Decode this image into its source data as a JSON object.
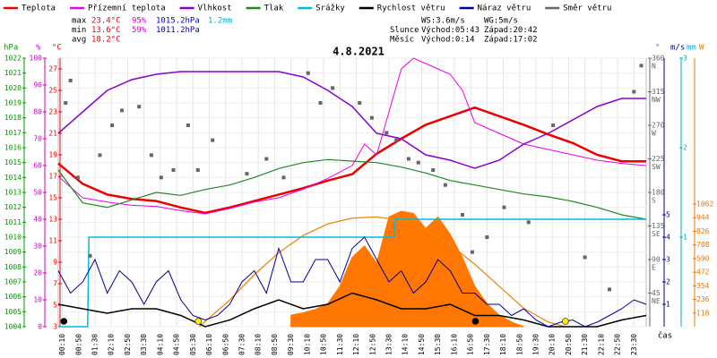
{
  "chart_data": {
    "type": "line",
    "title": "4.8.2021",
    "xlim": [
      0,
      24
    ],
    "xticks": [
      {
        "value": 0.1667,
        "label": "00:10"
      },
      {
        "value": 0.8333,
        "label": "00:50"
      },
      {
        "value": 1.5,
        "label": "01:30"
      },
      {
        "value": 2.1667,
        "label": "02:10"
      },
      {
        "value": 2.8333,
        "label": "02:50"
      },
      {
        "value": 3.5,
        "label": "03:30"
      },
      {
        "value": 4.1667,
        "label": "04:10"
      },
      {
        "value": 4.8333,
        "label": "04:50"
      },
      {
        "value": 5.5,
        "label": "05:30"
      },
      {
        "value": 6.1667,
        "label": "06:10"
      },
      {
        "value": 6.8333,
        "label": "06:50"
      },
      {
        "value": 7.5,
        "label": "07:30"
      },
      {
        "value": 8.1667,
        "label": "08:10"
      },
      {
        "value": 8.8333,
        "label": "08:50"
      },
      {
        "value": 9.5,
        "label": "09:30"
      },
      {
        "value": 10.1667,
        "label": "10:10"
      },
      {
        "value": 10.8333,
        "label": "10:50"
      },
      {
        "value": 11.5,
        "label": "11:30"
      },
      {
        "value": 12.1667,
        "label": "12:10"
      },
      {
        "value": 12.8333,
        "label": "12:50"
      },
      {
        "value": 13.5,
        "label": "13:30"
      },
      {
        "value": 14.1667,
        "label": "14:10"
      },
      {
        "value": 14.8333,
        "label": "14:50"
      },
      {
        "value": 15.5,
        "label": "15:30"
      },
      {
        "value": 16.1667,
        "label": "16:10"
      },
      {
        "value": 16.8333,
        "label": "16:50"
      },
      {
        "value": 17.5,
        "label": "17:30"
      },
      {
        "value": 18.1667,
        "label": "18:10"
      },
      {
        "value": 18.8333,
        "label": "18:50"
      },
      {
        "value": 19.5,
        "label": "19:30"
      },
      {
        "value": 20.1667,
        "label": "20:10"
      },
      {
        "value": 20.8333,
        "label": "20:50"
      },
      {
        "value": 21.5,
        "label": "21:30"
      },
      {
        "value": 22.1667,
        "label": "22:10"
      },
      {
        "value": 22.8333,
        "label": "22:50"
      },
      {
        "value": 23.5,
        "label": "23:30"
      }
    ],
    "xlabel": "čas",
    "axes": {
      "hpa": {
        "label": "hPa",
        "color": "#009900",
        "lim": [
          1004,
          1022
        ],
        "ticks": [
          1004,
          1005,
          1006,
          1007,
          1008,
          1009,
          1010,
          1011,
          1012,
          1013,
          1014,
          1015,
          1016,
          1017,
          1018,
          1019,
          1020,
          1021,
          1022
        ]
      },
      "pct": {
        "label": "%",
        "color": "#cc00cc",
        "lim": [
          0,
          100
        ],
        "ticks": [
          0,
          10,
          20,
          30,
          40,
          50,
          60,
          70,
          80,
          90,
          100
        ]
      },
      "temp": {
        "label": "°C",
        "color": "#ee0000",
        "lim": [
          3,
          28
        ],
        "ticks": [
          3,
          5,
          7,
          9,
          11,
          13,
          15,
          17,
          19,
          21,
          23,
          25,
          27
        ]
      },
      "dir": {
        "label": "°",
        "color": "#666666",
        "lim": [
          0,
          360
        ],
        "ticks": [
          45,
          90,
          135,
          180,
          225,
          270,
          315,
          360
        ],
        "names": [
          "NE",
          "E",
          "SE",
          "S",
          "SW",
          "W",
          "NW",
          "N"
        ]
      },
      "ms": {
        "label": "m/s",
        "color": "#000080",
        "lim": [
          0,
          12
        ],
        "ticks": [
          1,
          2,
          3,
          4,
          5
        ]
      },
      "mm": {
        "label": "mm",
        "color": "#00aacc",
        "lim": [
          0,
          3
        ],
        "ticks": [
          1,
          2,
          3
        ]
      },
      "w": {
        "label": "W",
        "color": "#ee7700",
        "lim": [
          0,
          2325
        ],
        "ticks": [
          118,
          236,
          354,
          472,
          590,
          708,
          826,
          944,
          1062
        ]
      }
    },
    "solar": {
      "color": "#ff7700",
      "axis": "w",
      "x": [
        9.5,
        10,
        10.5,
        11,
        11.5,
        12,
        12.5,
        13,
        13.5,
        14,
        14.5,
        15,
        15.5,
        16,
        16.5,
        17,
        17.5,
        18,
        18.5,
        19
      ],
      "values": [
        100,
        120,
        150,
        200,
        350,
        600,
        700,
        550,
        950,
        1000,
        980,
        850,
        950,
        800,
        600,
        350,
        200,
        100,
        40,
        0
      ]
    },
    "solar_theory": {
      "color": "#ee8811",
      "axis": "w",
      "x": [
        5.75,
        7,
        8,
        9,
        10,
        11,
        12,
        13,
        14,
        15,
        16,
        17,
        18,
        19,
        20,
        20.7
      ],
      "values": [
        0,
        230,
        450,
        640,
        790,
        890,
        940,
        950,
        920,
        840,
        710,
        540,
        350,
        160,
        40,
        0
      ]
    },
    "series": [
      {
        "name": "Teplota",
        "color": "#ee0000",
        "axis": "temp",
        "width": 2.5,
        "x": [
          0,
          1,
          2,
          3,
          4,
          5,
          6,
          7,
          8,
          9,
          10,
          11,
          12,
          13,
          14,
          15,
          16,
          17,
          18,
          19,
          20,
          21,
          22,
          23,
          24
        ],
        "values": [
          18.2,
          16.3,
          15.3,
          14.9,
          14.7,
          14.1,
          13.6,
          14.1,
          14.7,
          15.3,
          15.9,
          16.6,
          17.2,
          19.1,
          20.5,
          21.8,
          22.6,
          23.4,
          22.6,
          21.8,
          20.9,
          20.1,
          19.0,
          18.4,
          18.4
        ]
      },
      {
        "name": "Přízemní teplota",
        "color": "#ee00ee",
        "axis": "temp",
        "width": 1,
        "x": [
          0,
          1,
          2,
          3,
          4,
          5,
          6,
          7,
          8,
          9,
          10,
          11,
          12,
          12.5,
          13,
          13.5,
          14,
          14.5,
          15,
          15.5,
          16,
          16.5,
          17,
          18,
          19,
          20,
          21,
          22,
          23,
          24
        ],
        "values": [
          17.0,
          15.0,
          14.6,
          14.3,
          14.2,
          13.8,
          13.5,
          14.0,
          14.6,
          15.0,
          15.8,
          16.8,
          18.0,
          20.0,
          19.0,
          23.0,
          27.0,
          28.0,
          27.5,
          27.0,
          26.5,
          25.0,
          22.0,
          21.0,
          20.0,
          19.5,
          19.0,
          18.5,
          18.2,
          18.0
        ]
      },
      {
        "name": "Vlhkost",
        "color": "#8800cc",
        "axis": "pct",
        "width": 1.5,
        "x": [
          0,
          1,
          2,
          3,
          4,
          5,
          6,
          7,
          8,
          9,
          10,
          11,
          12,
          13,
          14,
          15,
          16,
          17,
          18,
          19,
          20,
          21,
          22,
          23,
          24
        ],
        "values": [
          72,
          80,
          88,
          92,
          94,
          95,
          95,
          95,
          95,
          95,
          93,
          88,
          82,
          72,
          70,
          64,
          62,
          59,
          62,
          68,
          72,
          77,
          82,
          85,
          85
        ]
      },
      {
        "name": "Tlak",
        "color": "#228822",
        "axis": "hpa",
        "width": 1.2,
        "x": [
          0,
          1,
          2,
          3,
          4,
          5,
          6,
          7,
          8,
          9,
          10,
          11,
          12,
          13,
          14,
          15,
          16,
          17,
          18,
          19,
          20,
          21,
          22,
          23,
          24
        ],
        "values": [
          1014.5,
          1012.3,
          1012.0,
          1012.5,
          1013.0,
          1012.8,
          1013.2,
          1013.5,
          1014.0,
          1014.6,
          1015.0,
          1015.2,
          1015.1,
          1015.0,
          1014.7,
          1014.3,
          1013.8,
          1013.5,
          1013.2,
          1012.9,
          1012.7,
          1012.4,
          1012.0,
          1011.5,
          1011.2
        ]
      },
      {
        "name": "Srážky",
        "color": "#00bbdd",
        "axis": "mm",
        "width": 1.5,
        "x": [
          0,
          1.2,
          1.25,
          13.7,
          13.75,
          24
        ],
        "values": [
          0,
          0,
          1.0,
          1.0,
          1.2,
          1.2
        ]
      },
      {
        "name": "Rychlost větru",
        "color": "#000000",
        "axis": "ms",
        "width": 1.5,
        "x": [
          0,
          1,
          2,
          3,
          4,
          5,
          6,
          7,
          8,
          9,
          10,
          11,
          12,
          13,
          14,
          15,
          16,
          17,
          18,
          19,
          20,
          21,
          22,
          23,
          24
        ],
        "values": [
          1.0,
          0.8,
          0.6,
          0.8,
          0.8,
          0.5,
          0,
          0.3,
          0.8,
          1.2,
          0.8,
          1.0,
          1.5,
          1.2,
          0.8,
          0.8,
          1.0,
          0.5,
          0.5,
          0.3,
          0,
          0,
          0,
          0.3,
          0.5
        ]
      },
      {
        "name": "Náraz větru",
        "color": "#000099",
        "axis": "ms",
        "width": 1,
        "x": [
          0,
          0.5,
          1,
          1.5,
          2,
          2.5,
          3,
          3.5,
          4,
          4.5,
          5,
          5.5,
          6,
          6.5,
          7,
          7.5,
          8,
          8.5,
          9,
          9.5,
          10,
          10.5,
          11,
          11.5,
          12,
          12.5,
          13,
          13.5,
          14,
          14.5,
          15,
          15.5,
          16,
          16.5,
          17,
          17.5,
          18,
          18.5,
          19,
          19.5,
          20,
          20.5,
          21,
          21.5,
          22,
          22.5,
          23,
          23.5,
          24
        ],
        "values": [
          2.5,
          1.5,
          2,
          3,
          1.5,
          2.5,
          2,
          1,
          2,
          2.5,
          1.2,
          0.5,
          0.3,
          0.5,
          1,
          2,
          2.5,
          1.5,
          3.5,
          2,
          2,
          3,
          3,
          2,
          3.5,
          4,
          3,
          2,
          2.5,
          1.5,
          2,
          3,
          2.5,
          1.5,
          1.5,
          1,
          1,
          0.5,
          0.8,
          0.3,
          0,
          0.2,
          0.3,
          0,
          0.2,
          0.5,
          0.8,
          1.2,
          1
        ]
      },
      {
        "name": "Směr větru",
        "color": "#666666",
        "axis": "dir",
        "kind": "scatter",
        "x": [
          0.3,
          0.5,
          0.8,
          1.3,
          1.7,
          2.2,
          2.6,
          3.3,
          3.8,
          4.2,
          4.7,
          5.3,
          5.7,
          6.3,
          7.7,
          8.5,
          9.2,
          10.2,
          10.7,
          11.2,
          12.3,
          12.8,
          13.4,
          13.8,
          14.3,
          14.7,
          15.3,
          15.8,
          16.5,
          16.9,
          17.5,
          18.2,
          19.2,
          20.2,
          21.5,
          22.5,
          23.5,
          23.8
        ],
        "values": [
          300,
          330,
          200,
          95,
          230,
          270,
          290,
          295,
          230,
          200,
          210,
          270,
          210,
          250,
          205,
          225,
          200,
          340,
          300,
          320,
          300,
          280,
          260,
          250,
          225,
          220,
          210,
          190,
          150,
          100,
          120,
          160,
          140,
          270,
          93,
          50,
          315,
          350
        ]
      }
    ],
    "events": [
      {
        "x": 0.23,
        "color": "#000000"
      },
      {
        "x": 5.72,
        "color": "#ffee00"
      },
      {
        "x": 17.03,
        "color": "#000000"
      },
      {
        "x": 20.7,
        "color": "#ffee00"
      }
    ],
    "stats": [
      [
        "max",
        "23.4°C",
        "95%",
        "1015.2hPa",
        "1.2mm"
      ],
      [
        "min",
        "13.6°C",
        "59%",
        "1011.2hPa"
      ],
      [
        "avg",
        "18.2°C"
      ]
    ],
    "info": [
      [
        "",
        "WS:3.6m/s",
        "WG:5m/s"
      ],
      [
        "Slunce",
        "Východ:05:43",
        "Západ:20:42"
      ],
      [
        "Měsíc",
        "Východ:0:14",
        "Západ:17:02"
      ]
    ]
  }
}
